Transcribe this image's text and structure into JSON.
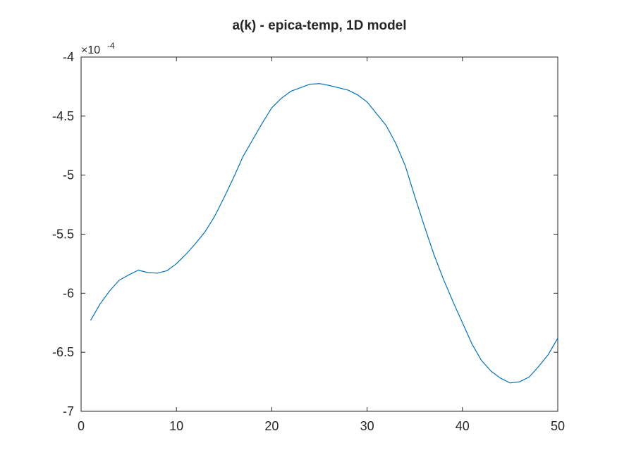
{
  "chart_data": {
    "type": "line",
    "title": "a(k) - epica-temp, 1D model",
    "xlabel": "",
    "ylabel": "",
    "exponent_label": "×10",
    "exponent_power": "-4",
    "xlim": [
      0,
      50
    ],
    "ylim": [
      -7,
      -4
    ],
    "xticks": [
      0,
      10,
      20,
      30,
      40,
      50
    ],
    "xtick_labels": [
      "0",
      "10",
      "20",
      "30",
      "40",
      "50"
    ],
    "yticks": [
      -7,
      -6.5,
      -6,
      -5.5,
      -5,
      -4.5,
      -4
    ],
    "ytick_labels": [
      "-7",
      "-6.5",
      "-6",
      "-5.5",
      "-5",
      "-4.5",
      "-4"
    ],
    "grid": false,
    "colors": {
      "line": "#0072BD",
      "axes": "#262626",
      "background": "#ffffff"
    },
    "series": [
      {
        "x": [
          1,
          2,
          3,
          4,
          5,
          6,
          7,
          8,
          9,
          10,
          11,
          12,
          13,
          14,
          15,
          16,
          17,
          18,
          19,
          20,
          21,
          22,
          23,
          24,
          25,
          26,
          27,
          28,
          29,
          30,
          31,
          32,
          33,
          34,
          35,
          36,
          37,
          38,
          39,
          40,
          41,
          42,
          43,
          44,
          45,
          46,
          47,
          48,
          49,
          50
        ],
        "values": [
          -6.23,
          -6.09,
          -5.98,
          -5.89,
          -5.845,
          -5.805,
          -5.825,
          -5.83,
          -5.81,
          -5.75,
          -5.67,
          -5.58,
          -5.48,
          -5.35,
          -5.19,
          -5.02,
          -4.84,
          -4.7,
          -4.56,
          -4.43,
          -4.35,
          -4.29,
          -4.26,
          -4.23,
          -4.225,
          -4.24,
          -4.26,
          -4.28,
          -4.32,
          -4.38,
          -4.48,
          -4.58,
          -4.73,
          -4.92,
          -5.18,
          -5.43,
          -5.67,
          -5.88,
          -6.07,
          -6.25,
          -6.43,
          -6.57,
          -6.66,
          -6.72,
          -6.76,
          -6.75,
          -6.71,
          -6.62,
          -6.52,
          -6.38
        ]
      }
    ]
  }
}
